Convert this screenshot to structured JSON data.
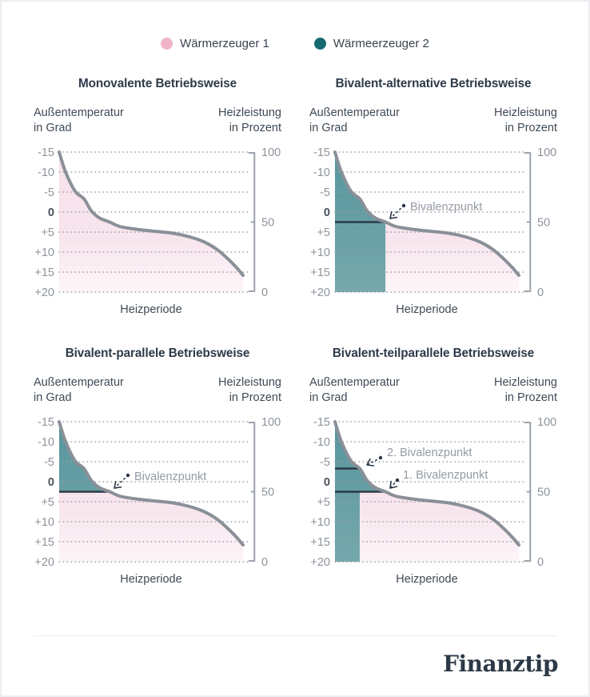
{
  "legend": {
    "items": [
      {
        "label": "Wärmerzeuger 1",
        "color": "#efb4c8",
        "series": "pink"
      },
      {
        "label": "Wärmeerzeuger 2",
        "color": "#156a72",
        "series": "teal"
      }
    ]
  },
  "footer": {
    "brand": "Finanztip"
  },
  "colors": {
    "pink_dot": "#efb4c8",
    "teal_dot": "#156a72",
    "pink_fill_top": "#f7e1ea",
    "pink_fill_bottom": "#fdf5f9",
    "teal_fill_top": "#57959d",
    "teal_fill_bottom": "#75a8ac",
    "curve": "#8a9098",
    "grid_dot": "#9aa0a8",
    "tick_label": "#8d949c",
    "tick_label_zero": "#49525c",
    "axis_heading": "#3f4a55",
    "title": "#2e3a48",
    "bivalenz_line": "#2c3947",
    "annotation_text": "#949ba4",
    "right_axis": "#9ba2ab",
    "divider": "#e9ebef",
    "brand": "#2c3947"
  },
  "chart_data": {
    "type": "area",
    "layout": "2x2 small multiples with identical axes",
    "shared": {
      "x_axis_label": "Heizperiode",
      "x_range_note": "Heizperiode ohne Zahlenachse, 0-100 %",
      "y_left_label_line1": "Außentemperatur",
      "y_left_label_line2": "in Grad",
      "y_left_ticks": [
        -15,
        -10,
        -5,
        0,
        5,
        10,
        15,
        20
      ],
      "y_left_tick_labels": [
        "-15",
        "-10",
        "-5",
        "0",
        "+5",
        "+10",
        "+15",
        "+20"
      ],
      "y_left_top_to_bottom": [
        -15,
        20
      ],
      "y_right_label_line1": "Heizleistung",
      "y_right_label_line2": "in Prozent",
      "y_right_tick_labels": [
        "100",
        "50",
        "0"
      ],
      "y_right_ticks_pct": [
        100,
        50,
        0
      ],
      "grid": "dotted horizontal line at every temperature tick",
      "curve_name": "Heizkurve (Außentemperatur über der Heizperiode)",
      "curve_x_pct": [
        0,
        3.5,
        8.7,
        13.5,
        17.5,
        22,
        27.5,
        33,
        42,
        52,
        62,
        71,
        79,
        86,
        92,
        96.5,
        100
      ],
      "curve_temp": [
        -15,
        -10,
        -5.2,
        -3.3,
        -0.3,
        1.5,
        2.5,
        3.6,
        4.3,
        4.8,
        5.3,
        6.2,
        7.5,
        9.4,
        11.8,
        13.9,
        15.8
      ]
    },
    "charts": [
      {
        "mode": "monovalent",
        "title": "Monovalente Betriebsweise",
        "regions": [
          {
            "series": "Wärmerzeuger 1",
            "fill": "pink",
            "area": "unter der Heizkurve über die gesamte Heizperiode"
          }
        ],
        "bivalenz_lines": [],
        "annotations": []
      },
      {
        "mode": "alternative",
        "title": "Bivalent-alternative Betriebsweise",
        "regions": [
          {
            "series": "Wärmeerzeuger 2",
            "fill": "teal",
            "area": "unter der Heizkurve von 0 % bis zum Bivalenzpunkt (ca. 27 % der Heizperiode), bis zum Boden"
          },
          {
            "series": "Wärmerzeuger 1",
            "fill": "pink",
            "area": "unter der Heizkurve ab dem Bivalenzpunkt bis 100 %"
          }
        ],
        "bivalenz_lines": [
          {
            "temp": 2.5,
            "heizleistung_pct": 50,
            "x_pct_end": 27.5
          }
        ],
        "annotations": [
          {
            "label": "Bivalenzpunkt",
            "temp": 2.5,
            "heizleistung_pct": 50,
            "x_pct": 27.5
          }
        ]
      },
      {
        "mode": "parallel",
        "title": "Bivalent-parallele Betriebsweise",
        "regions": [
          {
            "series": "Wärmeerzeuger 2",
            "fill": "teal",
            "area": "zwischen Heizkurve und Bivalenzlinie, 0 % bis ca. 27 %"
          },
          {
            "series": "Wärmerzeuger 1",
            "fill": "pink",
            "area": "unterhalb der Bivalenzlinie über die gesamte Breite und unter der Heizkurve ab dem Bivalenzpunkt"
          }
        ],
        "bivalenz_lines": [
          {
            "temp": 2.5,
            "heizleistung_pct": 50,
            "x_pct_end": 27.5
          }
        ],
        "annotations": [
          {
            "label": "Bivalenzpunkt",
            "temp": 2.5,
            "heizleistung_pct": 50,
            "x_pct": 27.5
          }
        ]
      },
      {
        "mode": "teilparallel",
        "title": "Bivalent-teilparallele Betriebsweise",
        "regions": [
          {
            "series": "Wärmeerzeuger 2",
            "fill": "teal",
            "area": "unter der Heizkurve bis zum 1. Bivalenzpunkt; unterhalb der Linie als Säule nur bis zum 2. Bivalenzpunkt (ca. 13 %)"
          },
          {
            "series": "Wärmerzeuger 1",
            "fill": "pink",
            "area": "unterhalb der Linie ab dem 2. Bivalenzpunkt und unter der Heizkurve ab dem 1. Bivalenzpunkt"
          }
        ],
        "bivalenz_lines": [
          {
            "temp": -3.3,
            "heizleistung_pct": 67,
            "x_pct_end": 13.5
          },
          {
            "temp": 2.5,
            "heizleistung_pct": 50,
            "x_pct_end": 27.5
          }
        ],
        "annotations": [
          {
            "label": "2. Bivalenzpunkt",
            "temp": -3.3,
            "heizleistung_pct": 67,
            "x_pct": 13.5
          },
          {
            "label": "1. Bivalenzpunkt",
            "temp": 2.5,
            "heizleistung_pct": 50,
            "x_pct": 27.5
          }
        ]
      }
    ]
  }
}
